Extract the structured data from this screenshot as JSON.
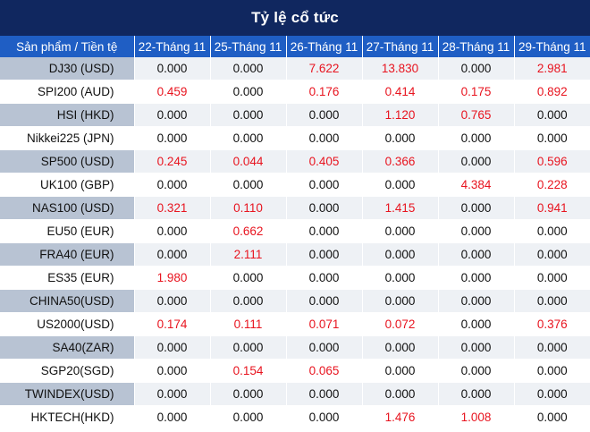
{
  "title": "Tỷ lệ cổ tức",
  "headers": [
    "Sản phẩm / Tiền tệ",
    "22-Tháng 11",
    "25-Tháng 11",
    "26-Tháng 11",
    "27-Tháng 11",
    "28-Tháng 11",
    "29-Tháng 11"
  ],
  "rows": [
    {
      "product": "DJ30 (USD)",
      "values": [
        "0.000",
        "0.000",
        "7.622",
        "13.830",
        "0.000",
        "2.981"
      ]
    },
    {
      "product": "SPI200 (AUD)",
      "values": [
        "0.459",
        "0.000",
        "0.176",
        "0.414",
        "0.175",
        "0.892"
      ]
    },
    {
      "product": "HSI (HKD)",
      "values": [
        "0.000",
        "0.000",
        "0.000",
        "1.120",
        "0.765",
        "0.000"
      ]
    },
    {
      "product": "Nikkei225 (JPN)",
      "values": [
        "0.000",
        "0.000",
        "0.000",
        "0.000",
        "0.000",
        "0.000"
      ]
    },
    {
      "product": "SP500 (USD)",
      "values": [
        "0.245",
        "0.044",
        "0.405",
        "0.366",
        "0.000",
        "0.596"
      ]
    },
    {
      "product": "UK100 (GBP)",
      "values": [
        "0.000",
        "0.000",
        "0.000",
        "0.000",
        "4.384",
        "0.228"
      ]
    },
    {
      "product": "NAS100 (USD)",
      "values": [
        "0.321",
        "0.110",
        "0.000",
        "1.415",
        "0.000",
        "0.941"
      ]
    },
    {
      "product": "EU50 (EUR)",
      "values": [
        "0.000",
        "0.662",
        "0.000",
        "0.000",
        "0.000",
        "0.000"
      ]
    },
    {
      "product": "FRA40 (EUR)",
      "values": [
        "0.000",
        "2.111",
        "0.000",
        "0.000",
        "0.000",
        "0.000"
      ]
    },
    {
      "product": "ES35 (EUR)",
      "values": [
        "1.980",
        "0.000",
        "0.000",
        "0.000",
        "0.000",
        "0.000"
      ]
    },
    {
      "product": "CHINA50(USD)",
      "values": [
        "0.000",
        "0.000",
        "0.000",
        "0.000",
        "0.000",
        "0.000"
      ]
    },
    {
      "product": "US2000(USD)",
      "values": [
        "0.174",
        "0.111",
        "0.071",
        "0.072",
        "0.000",
        "0.376"
      ]
    },
    {
      "product": "SA40(ZAR)",
      "values": [
        "0.000",
        "0.000",
        "0.000",
        "0.000",
        "0.000",
        "0.000"
      ]
    },
    {
      "product": "SGP20(SGD)",
      "values": [
        "0.000",
        "0.154",
        "0.065",
        "0.000",
        "0.000",
        "0.000"
      ]
    },
    {
      "product": "TWINDEX(USD)",
      "values": [
        "0.000",
        "0.000",
        "0.000",
        "0.000",
        "0.000",
        "0.000"
      ]
    },
    {
      "product": "HKTECH(HKD)",
      "values": [
        "0.000",
        "0.000",
        "0.000",
        "1.476",
        "1.008",
        "0.000"
      ]
    }
  ],
  "colors": {
    "title_bg": "#10275f",
    "header_bg": "#1f5ec4",
    "positive": "#e8141f",
    "zero": "#111111",
    "band": "#eef1f5",
    "band_product": "#b8c3d3"
  }
}
